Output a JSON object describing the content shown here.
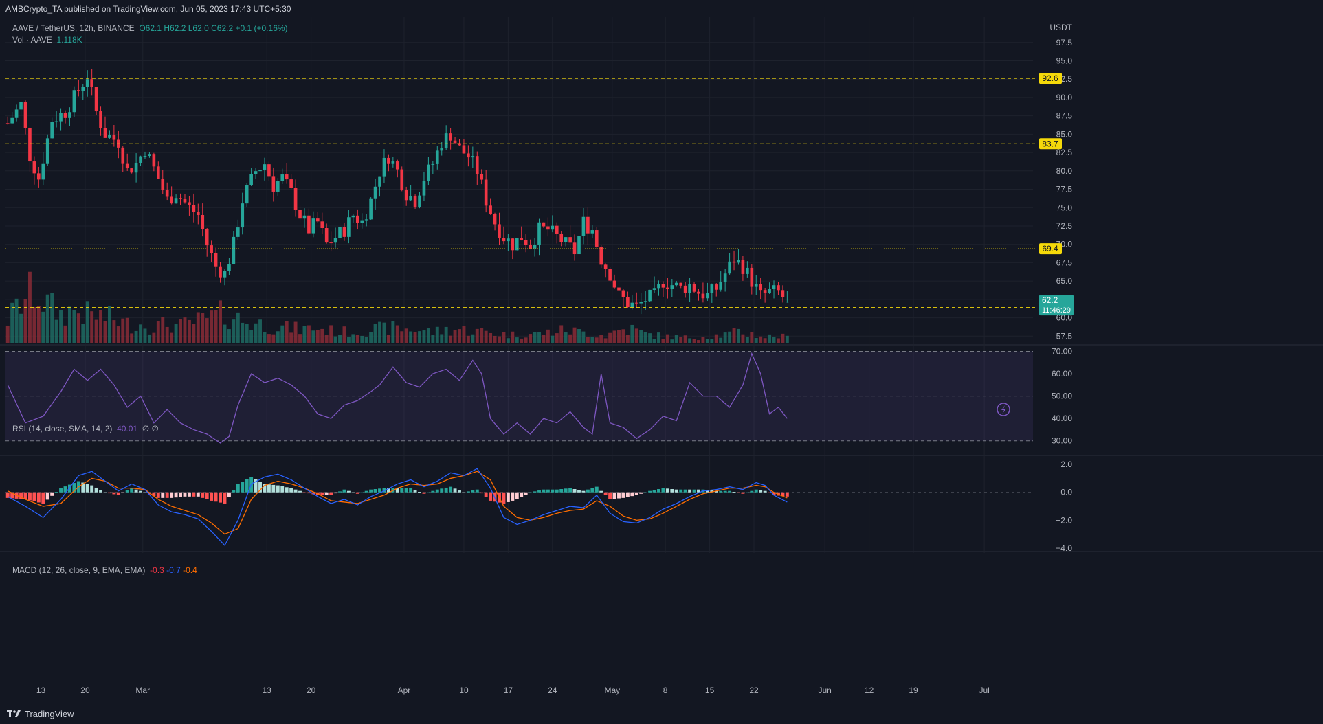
{
  "header": {
    "published": "AMBCrypto_TA published on TradingView.com, Jun 05, 2023 17:43 UTC+5:30"
  },
  "legend": {
    "symbol": "AAVE / TetherUS, 12h, BINANCE",
    "open": "O62.1",
    "high": "H62.2",
    "low": "L62.0",
    "close": "C62.2",
    "change": "+0.1 (+0.16%)",
    "vol_label": "Vol · AAVE",
    "vol_value": "1.118K",
    "rsi_label": "RSI (14, close, SMA, 14, 2)",
    "rsi_value": "40.01",
    "rsi_extra": "∅ ∅",
    "macd_label": "MACD (12, 26, close, 9, EMA, EMA)",
    "macd_hist": "-0.3",
    "macd_line": "-0.7",
    "macd_signal": "-0.4"
  },
  "footer": {
    "brand": "TradingView"
  },
  "colors": {
    "bg": "#131722",
    "up": "#26a69a",
    "down": "#f23645",
    "level": "#f5d90a",
    "rsi": "#7e57c2",
    "macd": "#2962ff",
    "signal": "#ff6d00"
  },
  "chart_data": {
    "type": "candlestick",
    "price_axis": {
      "unit": "USDT",
      "ticks": [
        97.5,
        95.0,
        92.5,
        90.0,
        87.5,
        85.0,
        82.5,
        80.0,
        77.5,
        75.0,
        72.5,
        70.0,
        67.5,
        65.0,
        62.5,
        60.0,
        57.5
      ],
      "tick_labels": [
        "97.5",
        "95.0",
        "92.5",
        "90.0",
        "87.5",
        "85.0",
        "82.5",
        "80.0",
        "77.5",
        "75.0",
        "72.5",
        "70.0",
        "67.5",
        "65.0",
        "62.5",
        "60.0",
        "57.5"
      ],
      "range": [
        56.5,
        98.6
      ]
    },
    "last_price": {
      "value": 62.2,
      "label": "62.2",
      "countdown": "11:46:29"
    },
    "levels": [
      {
        "value": 92.6,
        "label": "92.6",
        "style": "dashed"
      },
      {
        "value": 83.7,
        "label": "83.7",
        "style": "dashed"
      },
      {
        "value": 69.4,
        "label": "69.4",
        "style": "dotted"
      },
      {
        "value": 61.4,
        "label": "61.4",
        "style": "dashed"
      }
    ],
    "time_axis": {
      "labels": [
        "13",
        "20",
        "Mar",
        "13",
        "20",
        "Apr",
        "10",
        "17",
        "24",
        "May",
        "8",
        "15",
        "22",
        "Jun",
        "12",
        "19",
        "Jul"
      ],
      "positions": [
        7.5,
        17.5,
        30.5,
        58.5,
        68.5,
        89.5,
        103,
        113,
        123,
        136.5,
        148.5,
        158.5,
        168.5,
        184.5,
        194.5,
        204.5,
        220.5
      ]
    },
    "total_slots": 232,
    "candle_anchors": [
      [
        0,
        86.5
      ],
      [
        3,
        89
      ],
      [
        5,
        82
      ],
      [
        7,
        79
      ],
      [
        10,
        87
      ],
      [
        13,
        88
      ],
      [
        16,
        91
      ],
      [
        18,
        93
      ],
      [
        20,
        88
      ],
      [
        22,
        85
      ],
      [
        25,
        84
      ],
      [
        27,
        80
      ],
      [
        29,
        81
      ],
      [
        31,
        83
      ],
      [
        34,
        79
      ],
      [
        36,
        76
      ],
      [
        38,
        77
      ],
      [
        41,
        75
      ],
      [
        43,
        74
      ],
      [
        45,
        70
      ],
      [
        47,
        67
      ],
      [
        49,
        66
      ],
      [
        51,
        70
      ],
      [
        53,
        76
      ],
      [
        56,
        80
      ],
      [
        58,
        81
      ],
      [
        60,
        78
      ],
      [
        62,
        79
      ],
      [
        64,
        77
      ],
      [
        66,
        74
      ],
      [
        68,
        72
      ],
      [
        70,
        73
      ],
      [
        72,
        70
      ],
      [
        74,
        71
      ],
      [
        76,
        72
      ],
      [
        78,
        74
      ],
      [
        80,
        73
      ],
      [
        82,
        76
      ],
      [
        84,
        80
      ],
      [
        86,
        82
      ],
      [
        88,
        80
      ],
      [
        90,
        77
      ],
      [
        92,
        76
      ],
      [
        94,
        79
      ],
      [
        96,
        81
      ],
      [
        98,
        84
      ],
      [
        100,
        85
      ],
      [
        102,
        83
      ],
      [
        104,
        82
      ],
      [
        106,
        80
      ],
      [
        108,
        76
      ],
      [
        110,
        73
      ],
      [
        112,
        71
      ],
      [
        114,
        70
      ],
      [
        116,
        71
      ],
      [
        118,
        70
      ],
      [
        120,
        72
      ],
      [
        122,
        72
      ],
      [
        124,
        71
      ],
      [
        126,
        70
      ],
      [
        128,
        69
      ],
      [
        130,
        73
      ],
      [
        132,
        72
      ],
      [
        134,
        68
      ],
      [
        136,
        66
      ],
      [
        138,
        63
      ],
      [
        140,
        62
      ],
      [
        142,
        61.5
      ],
      [
        144,
        62.5
      ],
      [
        146,
        63
      ],
      [
        148,
        65
      ],
      [
        150,
        64.5
      ],
      [
        152,
        64
      ],
      [
        154,
        64.5
      ],
      [
        156,
        63.5
      ],
      [
        158,
        63
      ],
      [
        160,
        64
      ],
      [
        162,
        66
      ],
      [
        164,
        68
      ],
      [
        166,
        67
      ],
      [
        168,
        65
      ],
      [
        170,
        63
      ],
      [
        172,
        63.5
      ],
      [
        174,
        63.5
      ],
      [
        176,
        62.2
      ]
    ],
    "volume_anchors": [
      [
        0,
        25
      ],
      [
        3,
        42
      ],
      [
        6,
        55
      ],
      [
        9,
        40
      ],
      [
        12,
        30
      ],
      [
        15,
        35
      ],
      [
        18,
        30
      ],
      [
        21,
        28
      ],
      [
        24,
        25
      ],
      [
        27,
        20
      ],
      [
        30,
        20
      ],
      [
        33,
        18
      ],
      [
        36,
        20
      ],
      [
        39,
        18
      ],
      [
        42,
        22
      ],
      [
        45,
        25
      ],
      [
        48,
        30
      ],
      [
        51,
        28
      ],
      [
        54,
        22
      ],
      [
        57,
        20
      ],
      [
        60,
        18
      ],
      [
        63,
        16
      ],
      [
        66,
        15
      ],
      [
        69,
        16
      ],
      [
        72,
        14
      ],
      [
        75,
        12
      ],
      [
        78,
        12
      ],
      [
        81,
        14
      ],
      [
        84,
        15
      ],
      [
        87,
        16
      ],
      [
        90,
        15
      ],
      [
        93,
        14
      ],
      [
        96,
        12
      ],
      [
        99,
        14
      ],
      [
        102,
        15
      ],
      [
        105,
        13
      ],
      [
        108,
        12
      ],
      [
        111,
        10
      ],
      [
        114,
        9
      ],
      [
        117,
        10
      ],
      [
        120,
        10
      ],
      [
        123,
        12
      ],
      [
        126,
        14
      ],
      [
        129,
        12
      ],
      [
        132,
        10
      ],
      [
        135,
        8
      ],
      [
        138,
        14
      ],
      [
        141,
        15
      ],
      [
        144,
        10
      ],
      [
        147,
        8
      ],
      [
        150,
        7
      ],
      [
        153,
        6
      ],
      [
        156,
        7
      ],
      [
        159,
        8
      ],
      [
        162,
        9
      ],
      [
        165,
        12
      ],
      [
        168,
        10
      ],
      [
        171,
        7
      ],
      [
        174,
        8
      ],
      [
        176,
        6
      ]
    ],
    "volume_scale": [
      0,
      100
    ],
    "rsi": {
      "levels": [
        70,
        50,
        30
      ],
      "tick_labels": [
        "70.00",
        "60.00",
        "50.00",
        "40.00",
        "30.00"
      ],
      "ticks": [
        70,
        60,
        50,
        40,
        30
      ],
      "range": [
        25,
        72
      ],
      "values": [
        [
          0,
          55
        ],
        [
          4,
          38
        ],
        [
          8,
          41
        ],
        [
          12,
          52
        ],
        [
          15,
          62
        ],
        [
          18,
          57
        ],
        [
          21,
          62
        ],
        [
          24,
          55
        ],
        [
          27,
          45
        ],
        [
          30,
          50
        ],
        [
          33,
          38
        ],
        [
          36,
          44
        ],
        [
          39,
          38
        ],
        [
          42,
          35
        ],
        [
          45,
          33
        ],
        [
          48,
          29
        ],
        [
          50,
          32
        ],
        [
          52,
          46
        ],
        [
          55,
          60
        ],
        [
          58,
          56
        ],
        [
          61,
          58
        ],
        [
          64,
          55
        ],
        [
          67,
          50
        ],
        [
          70,
          42
        ],
        [
          73,
          40
        ],
        [
          76,
          46
        ],
        [
          79,
          48
        ],
        [
          82,
          52
        ],
        [
          84,
          55
        ],
        [
          87,
          63
        ],
        [
          90,
          56
        ],
        [
          93,
          54
        ],
        [
          96,
          60
        ],
        [
          99,
          62
        ],
        [
          102,
          57
        ],
        [
          105,
          66
        ],
        [
          107,
          60
        ],
        [
          109,
          40
        ],
        [
          112,
          33
        ],
        [
          115,
          38
        ],
        [
          118,
          33
        ],
        [
          121,
          40
        ],
        [
          124,
          38
        ],
        [
          127,
          43
        ],
        [
          130,
          36
        ],
        [
          132,
          33
        ],
        [
          134,
          60
        ],
        [
          136,
          38
        ],
        [
          139,
          36
        ],
        [
          142,
          31
        ],
        [
          145,
          35
        ],
        [
          148,
          41
        ],
        [
          151,
          39
        ],
        [
          154,
          56
        ],
        [
          157,
          50
        ],
        [
          160,
          50
        ],
        [
          163,
          45
        ],
        [
          166,
          55
        ],
        [
          168,
          69
        ],
        [
          170,
          60
        ],
        [
          172,
          42
        ],
        [
          174,
          45
        ],
        [
          176,
          40
        ]
      ]
    },
    "macd": {
      "tick_labels": [
        "2.0",
        "0.0",
        "−2.0",
        "−4.0"
      ],
      "ticks": [
        2,
        0,
        -2,
        -4
      ],
      "range": [
        -4.1,
        2.4
      ],
      "macd_line": [
        [
          0,
          -0.3
        ],
        [
          4,
          -1.0
        ],
        [
          8,
          -1.8
        ],
        [
          12,
          -0.5
        ],
        [
          16,
          1.2
        ],
        [
          19,
          1.5
        ],
        [
          22,
          0.8
        ],
        [
          25,
          0.1
        ],
        [
          28,
          0.6
        ],
        [
          31,
          0.2
        ],
        [
          34,
          -0.9
        ],
        [
          37,
          -1.4
        ],
        [
          40,
          -1.6
        ],
        [
          43,
          -1.9
        ],
        [
          46,
          -2.8
        ],
        [
          49,
          -3.8
        ],
        [
          52,
          -2.0
        ],
        [
          55,
          0.6
        ],
        [
          58,
          1.1
        ],
        [
          61,
          1.3
        ],
        [
          64,
          0.9
        ],
        [
          67,
          0.3
        ],
        [
          70,
          -0.3
        ],
        [
          73,
          -0.8
        ],
        [
          76,
          -0.5
        ],
        [
          79,
          -0.9
        ],
        [
          82,
          -0.3
        ],
        [
          85,
          0.1
        ],
        [
          88,
          0.6
        ],
        [
          91,
          0.9
        ],
        [
          94,
          0.4
        ],
        [
          97,
          0.8
        ],
        [
          100,
          1.4
        ],
        [
          103,
          1.2
        ],
        [
          106,
          1.7
        ],
        [
          109,
          0.3
        ],
        [
          112,
          -1.8
        ],
        [
          115,
          -2.3
        ],
        [
          118,
          -2.0
        ],
        [
          121,
          -1.6
        ],
        [
          124,
          -1.3
        ],
        [
          127,
          -1.0
        ],
        [
          130,
          -1.1
        ],
        [
          133,
          -0.2
        ],
        [
          136,
          -1.5
        ],
        [
          139,
          -2.1
        ],
        [
          142,
          -2.2
        ],
        [
          145,
          -1.8
        ],
        [
          148,
          -1.2
        ],
        [
          151,
          -0.8
        ],
        [
          154,
          -0.3
        ],
        [
          157,
          0.1
        ],
        [
          160,
          0.2
        ],
        [
          163,
          0.4
        ],
        [
          166,
          0.2
        ],
        [
          169,
          0.7
        ],
        [
          171,
          0.5
        ],
        [
          173,
          -0.2
        ],
        [
          176,
          -0.7
        ]
      ],
      "signal_line": [
        [
          0,
          0.1
        ],
        [
          4,
          -0.5
        ],
        [
          8,
          -1.0
        ],
        [
          12,
          -0.8
        ],
        [
          16,
          0.4
        ],
        [
          19,
          1.0
        ],
        [
          22,
          0.8
        ],
        [
          25,
          0.3
        ],
        [
          28,
          0.3
        ],
        [
          31,
          0.2
        ],
        [
          34,
          -0.5
        ],
        [
          37,
          -1.0
        ],
        [
          40,
          -1.3
        ],
        [
          43,
          -1.6
        ],
        [
          46,
          -2.2
        ],
        [
          49,
          -3.0
        ],
        [
          52,
          -2.6
        ],
        [
          55,
          -0.5
        ],
        [
          58,
          0.5
        ],
        [
          61,
          0.8
        ],
        [
          64,
          0.6
        ],
        [
          67,
          0.3
        ],
        [
          70,
          -0.1
        ],
        [
          73,
          -0.6
        ],
        [
          76,
          -0.7
        ],
        [
          79,
          -0.8
        ],
        [
          82,
          -0.5
        ],
        [
          85,
          -0.2
        ],
        [
          88,
          0.3
        ],
        [
          91,
          0.6
        ],
        [
          94,
          0.5
        ],
        [
          97,
          0.6
        ],
        [
          100,
          1.0
        ],
        [
          103,
          1.2
        ],
        [
          106,
          1.5
        ],
        [
          109,
          0.9
        ],
        [
          112,
          -1.0
        ],
        [
          115,
          -1.8
        ],
        [
          118,
          -2.0
        ],
        [
          121,
          -1.8
        ],
        [
          124,
          -1.5
        ],
        [
          127,
          -1.3
        ],
        [
          130,
          -1.2
        ],
        [
          133,
          -0.6
        ],
        [
          136,
          -1.0
        ],
        [
          139,
          -1.7
        ],
        [
          142,
          -2.0
        ],
        [
          145,
          -1.9
        ],
        [
          148,
          -1.5
        ],
        [
          151,
          -1.0
        ],
        [
          154,
          -0.5
        ],
        [
          157,
          -0.1
        ],
        [
          160,
          0.1
        ],
        [
          163,
          0.3
        ],
        [
          166,
          0.3
        ],
        [
          169,
          0.5
        ],
        [
          171,
          0.4
        ],
        [
          173,
          0.0
        ],
        [
          176,
          -0.4
        ]
      ]
    }
  }
}
